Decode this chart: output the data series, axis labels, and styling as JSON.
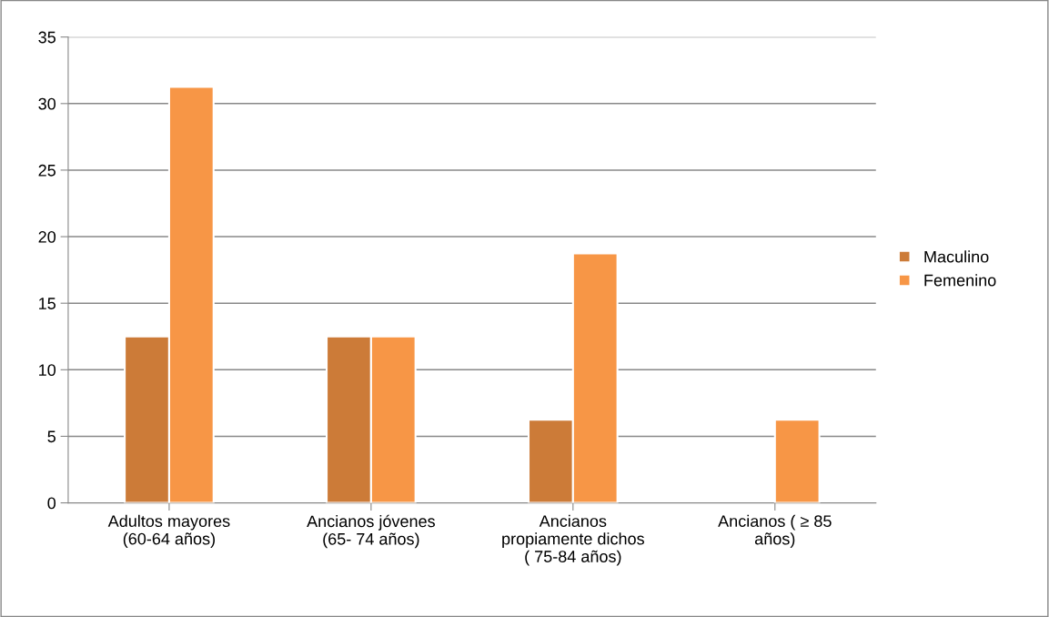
{
  "chart_data": {
    "type": "bar",
    "categories": [
      "Adultos mayores\n(60-64 años)",
      "Ancianos jóvenes\n(65- 74 años)",
      "Ancianos\npropiamente dichos\n( 75-84 años)",
      "Ancianos ( ≥ 85\naños)"
    ],
    "series": [
      {
        "name": "Maculino",
        "color": "#cc7b38",
        "values": [
          12.5,
          12.5,
          6.25,
          null
        ]
      },
      {
        "name": "Femenino",
        "color": "#f79646",
        "values": [
          31.25,
          12.5,
          18.75,
          6.25
        ]
      }
    ],
    "ylim": [
      0,
      35
    ],
    "yticks": [
      0,
      5,
      10,
      15,
      20,
      25,
      30,
      35
    ],
    "grid": "y",
    "legend": "right"
  }
}
